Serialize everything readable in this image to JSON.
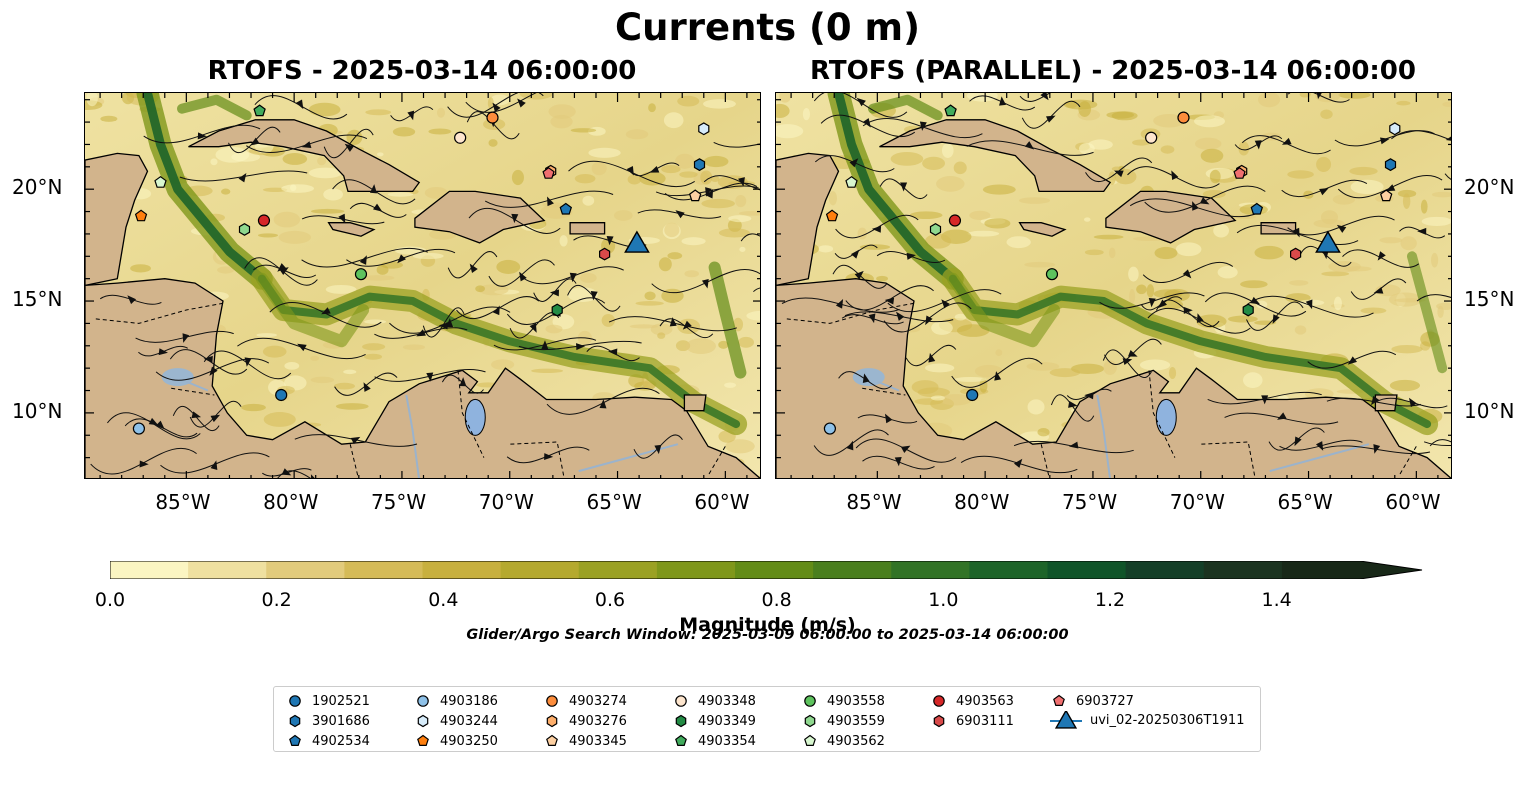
{
  "title": "Currents (0 m)",
  "chart_data": [
    {
      "type": "heatmap",
      "subtitle": "RTOFS - 2025-03-14 06:00:00",
      "x_ticks": [
        "85°W",
        "80°W",
        "75°W",
        "70°W",
        "65°W",
        "60°W"
      ],
      "x_tick_values": [
        -85,
        -80,
        -75,
        -70,
        -65,
        -60
      ],
      "y_ticks": [
        "20°N",
        "15°N",
        "10°N"
      ],
      "y_tick_values": [
        20,
        15,
        10
      ],
      "xlim": [
        -89.7,
        -58.3
      ],
      "ylim": [
        7.0,
        24.3
      ],
      "y_tick_side": "left",
      "markers": [
        {
          "id": "1902521",
          "lon": -80.6,
          "lat": 10.8
        },
        {
          "id": "3901686",
          "lon": -61.2,
          "lat": 21.1
        },
        {
          "id": "4902534",
          "lon": -67.4,
          "lat": 19.1
        },
        {
          "id": "4903186",
          "lon": -87.2,
          "lat": 9.3
        },
        {
          "id": "4903244",
          "lon": -61.0,
          "lat": 22.7
        },
        {
          "id": "4903250",
          "lon": -87.1,
          "lat": 18.8
        },
        {
          "id": "4903274",
          "lon": -70.8,
          "lat": 23.2
        },
        {
          "id": "4903276",
          "lon": -68.1,
          "lat": 20.8
        },
        {
          "id": "4903345",
          "lon": -61.4,
          "lat": 19.7
        },
        {
          "id": "4903348",
          "lon": -72.3,
          "lat": 22.3
        },
        {
          "id": "4903349",
          "lon": -67.8,
          "lat": 14.6
        },
        {
          "id": "4903354",
          "lon": -81.6,
          "lat": 23.5
        },
        {
          "id": "4903558",
          "lon": -76.9,
          "lat": 16.2
        },
        {
          "id": "4903559",
          "lon": -82.3,
          "lat": 18.2
        },
        {
          "id": "4903562",
          "lon": -86.2,
          "lat": 20.3
        },
        {
          "id": "4903563",
          "lon": -81.4,
          "lat": 18.6
        },
        {
          "id": "6903111",
          "lon": -65.6,
          "lat": 17.1
        },
        {
          "id": "6903727",
          "lon": -68.2,
          "lat": 20.7
        },
        {
          "id": "uvi_02-20250306T1911",
          "lon": -64.1,
          "lat": 17.6
        }
      ]
    },
    {
      "type": "heatmap",
      "subtitle": "RTOFS (PARALLEL) - 2025-03-14 06:00:00",
      "x_ticks": [
        "85°W",
        "80°W",
        "75°W",
        "70°W",
        "65°W",
        "60°W"
      ],
      "x_tick_values": [
        -85,
        -80,
        -75,
        -70,
        -65,
        -60
      ],
      "y_ticks": [
        "20°N",
        "15°N",
        "10°N"
      ],
      "y_tick_values": [
        20,
        15,
        10
      ],
      "xlim": [
        -89.7,
        -58.3
      ],
      "ylim": [
        7.0,
        24.3
      ],
      "y_tick_side": "right",
      "markers": [
        {
          "id": "1902521",
          "lon": -80.6,
          "lat": 10.8
        },
        {
          "id": "3901686",
          "lon": -61.2,
          "lat": 21.1
        },
        {
          "id": "4902534",
          "lon": -67.4,
          "lat": 19.1
        },
        {
          "id": "4903186",
          "lon": -87.2,
          "lat": 9.3
        },
        {
          "id": "4903244",
          "lon": -61.0,
          "lat": 22.7
        },
        {
          "id": "4903250",
          "lon": -87.1,
          "lat": 18.8
        },
        {
          "id": "4903274",
          "lon": -70.8,
          "lat": 23.2
        },
        {
          "id": "4903276",
          "lon": -68.1,
          "lat": 20.8
        },
        {
          "id": "4903345",
          "lon": -61.4,
          "lat": 19.7
        },
        {
          "id": "4903348",
          "lon": -72.3,
          "lat": 22.3
        },
        {
          "id": "4903349",
          "lon": -67.8,
          "lat": 14.6
        },
        {
          "id": "4903354",
          "lon": -81.6,
          "lat": 23.5
        },
        {
          "id": "4903558",
          "lon": -76.9,
          "lat": 16.2
        },
        {
          "id": "4903559",
          "lon": -82.3,
          "lat": 18.2
        },
        {
          "id": "4903562",
          "lon": -86.2,
          "lat": 20.3
        },
        {
          "id": "4903563",
          "lon": -81.4,
          "lat": 18.6
        },
        {
          "id": "6903111",
          "lon": -65.6,
          "lat": 17.1
        },
        {
          "id": "6903727",
          "lon": -68.2,
          "lat": 20.7
        },
        {
          "id": "uvi_02-20250306T1911",
          "lon": -64.1,
          "lat": 17.6
        }
      ]
    }
  ],
  "colorbar": {
    "label": "Magnitude (m/s)",
    "min": 0.0,
    "max": 1.5,
    "extend": "max",
    "ticks": [
      "0.0",
      "0.2",
      "0.4",
      "0.6",
      "0.8",
      "1.0",
      "1.2",
      "1.4"
    ],
    "tick_values": [
      0.0,
      0.2,
      0.4,
      0.6,
      0.8,
      1.0,
      1.2,
      1.4
    ],
    "colors": [
      "#fbf5c2",
      "#efe0a0",
      "#e2cb7c",
      "#d5bb58",
      "#c8b03e",
      "#b5a92e",
      "#9ba123",
      "#7f971a",
      "#638c17",
      "#4a7f1e",
      "#327326",
      "#1d6429",
      "#0f5429",
      "#143f28",
      "#1b3320",
      "#182818"
    ]
  },
  "search_window": "Glider/Argo Search Window: 2025-03-09 06:00:00 to 2025-03-14 06:00:00",
  "legend": {
    "columns": [
      [
        {
          "label": "1902521",
          "color": "#1f77b4",
          "shape": "circle"
        },
        {
          "label": "3901686",
          "color": "#1f77b4",
          "shape": "hexagon"
        },
        {
          "label": "4902534",
          "color": "#1f77b4",
          "shape": "pentagon"
        }
      ],
      [
        {
          "label": "4903186",
          "color": "#8ec1e8",
          "shape": "circle"
        },
        {
          "label": "4903244",
          "color": "#d7ecfa",
          "shape": "hexagon"
        },
        {
          "label": "4903250",
          "color": "#ff7f0e",
          "shape": "pentagon"
        }
      ],
      [
        {
          "label": "4903274",
          "color": "#fd8d3c",
          "shape": "circle"
        },
        {
          "label": "4903276",
          "color": "#fdae6b",
          "shape": "hexagon"
        },
        {
          "label": "4903345",
          "color": "#fdd0a2",
          "shape": "pentagon"
        }
      ],
      [
        {
          "label": "4903348",
          "color": "#fee6ce",
          "shape": "circle"
        },
        {
          "label": "4903349",
          "color": "#238b45",
          "shape": "hexagon"
        },
        {
          "label": "4903354",
          "color": "#41ab5d",
          "shape": "pentagon"
        }
      ],
      [
        {
          "label": "4903558",
          "color": "#5ec35e",
          "shape": "circle"
        },
        {
          "label": "4903559",
          "color": "#8fd88f",
          "shape": "hexagon"
        },
        {
          "label": "4903562",
          "color": "#d8f7d0",
          "shape": "pentagon"
        }
      ],
      [
        {
          "label": "4903563",
          "color": "#d62728",
          "shape": "circle"
        },
        {
          "label": "6903111",
          "color": "#d84a4a",
          "shape": "hexagon"
        }
      ],
      [
        {
          "label": "6903727",
          "color": "#f07070",
          "shape": "pentagon"
        },
        {
          "label": "uvi_02-20250306T1911",
          "color": "#1f77b4",
          "shape": "triangle-line"
        }
      ]
    ]
  }
}
